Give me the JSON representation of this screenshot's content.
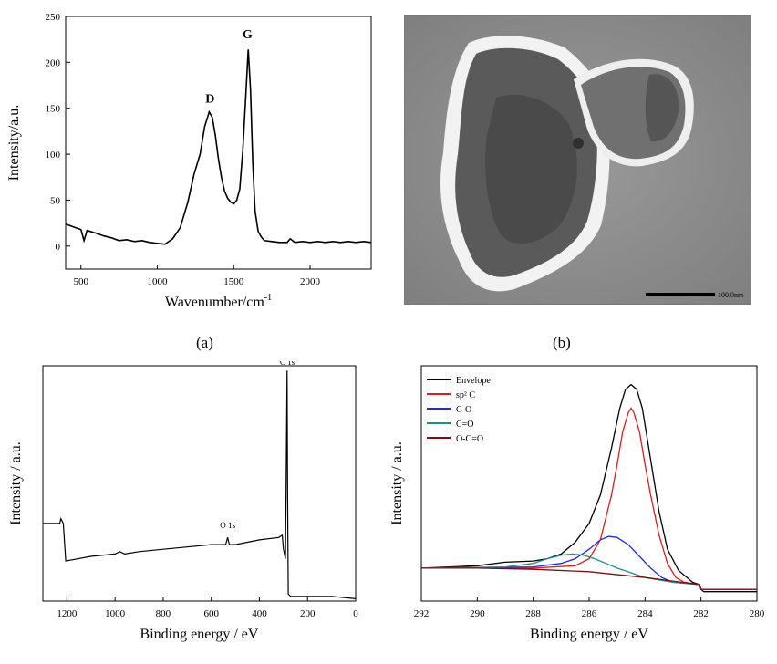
{
  "captions": {
    "a": "(a)",
    "b": "(b)"
  },
  "scale_bar_text": "100.0nm",
  "chart_data": [
    {
      "panel": "a",
      "type": "line",
      "xlabel": "Wavenumber/cm",
      "xlabel_sup": "-1",
      "ylabel": "Intensity/a.u.",
      "xlim": [
        400,
        2400
      ],
      "ylim": [
        -25,
        250
      ],
      "xticks": [
        500,
        1000,
        1500,
        2000
      ],
      "yticks": [
        0,
        50,
        100,
        150,
        200,
        250
      ],
      "annotations": [
        {
          "text": "D",
          "x": 1345,
          "y": 150
        },
        {
          "text": "G",
          "x": 1590,
          "y": 220
        }
      ],
      "series": [
        {
          "color": "#000000",
          "x": [
            400,
            450,
            500,
            520,
            540,
            560,
            600,
            650,
            700,
            750,
            800,
            850,
            900,
            950,
            1000,
            1050,
            1100,
            1150,
            1200,
            1240,
            1280,
            1310,
            1340,
            1360,
            1380,
            1400,
            1420,
            1440,
            1460,
            1480,
            1500,
            1520,
            1540,
            1560,
            1580,
            1595,
            1610,
            1625,
            1640,
            1660,
            1680,
            1700,
            1750,
            1800,
            1850,
            1870,
            1900,
            1950,
            2000,
            2050,
            2100,
            2150,
            2200,
            2250,
            2300,
            2350,
            2400
          ],
          "y": [
            24,
            21,
            18,
            6,
            17,
            16,
            14,
            11,
            9,
            6,
            7,
            5,
            6,
            4,
            3,
            2,
            8,
            20,
            48,
            78,
            100,
            130,
            146,
            140,
            120,
            95,
            75,
            60,
            52,
            48,
            46,
            50,
            62,
            105,
            165,
            214,
            170,
            90,
            38,
            16,
            10,
            6,
            5,
            4,
            4,
            8,
            4,
            5,
            4,
            5,
            4,
            5,
            4,
            5,
            4,
            5,
            4
          ]
        }
      ]
    },
    {
      "panel": "c",
      "type": "line",
      "xlabel": "Binding energy / eV",
      "ylabel": "Intensity / a.u.",
      "xlim": [
        1300,
        0
      ],
      "ylim": [
        0,
        100
      ],
      "xticks": [
        1200,
        1000,
        800,
        600,
        400,
        200,
        0
      ],
      "peak_labels": [
        {
          "text": "C 1s",
          "x": 284
        },
        {
          "text": "O 1s",
          "x": 532
        }
      ],
      "series": [
        {
          "color": "#000000",
          "x": [
            1300,
            1260,
            1240,
            1230,
            1225,
            1215,
            1205,
            1100,
            1000,
            980,
            960,
            900,
            800,
            700,
            600,
            540,
            532,
            525,
            500,
            400,
            320,
            305,
            300,
            292,
            288,
            285,
            283,
            280,
            270,
            200,
            100,
            0
          ],
          "y": [
            33,
            33,
            33,
            33,
            35,
            33,
            17,
            19,
            20,
            21,
            20,
            21,
            22,
            23,
            24,
            24,
            27,
            24,
            24,
            26,
            27,
            28,
            22,
            18,
            60,
            98,
            50,
            3,
            2,
            2,
            2,
            1
          ]
        }
      ]
    },
    {
      "panel": "d",
      "type": "line",
      "xlabel": "Binding energy / eV",
      "ylabel": "Intensity / a.u.",
      "xlim": [
        292,
        280
      ],
      "ylim": [
        0,
        1
      ],
      "xticks": [
        292,
        290,
        288,
        286,
        284,
        282,
        280
      ],
      "legend_position": "top-left",
      "series": [
        {
          "name": "Envelope",
          "color": "#000000",
          "x": [
            292,
            291,
            290,
            289,
            288,
            287.5,
            287,
            286.5,
            286,
            285.6,
            285.2,
            284.9,
            284.7,
            284.5,
            284.3,
            284.1,
            283.8,
            283.5,
            283.2,
            282.8,
            282.3,
            282.05,
            282,
            281.9,
            281,
            280
          ],
          "y": [
            0.14,
            0.145,
            0.15,
            0.165,
            0.17,
            0.18,
            0.2,
            0.25,
            0.33,
            0.45,
            0.65,
            0.82,
            0.9,
            0.92,
            0.9,
            0.82,
            0.6,
            0.38,
            0.22,
            0.13,
            0.08,
            0.07,
            0.05,
            0.04,
            0.04,
            0.04
          ]
        },
        {
          "name": "sp² C",
          "color": "#e11b1b",
          "x": [
            292,
            288,
            286.5,
            286,
            285.6,
            285.2,
            285,
            284.8,
            284.6,
            284.5,
            284.4,
            284.2,
            284,
            283.8,
            283.5,
            283.2,
            282.9,
            282.6,
            282.3,
            282.05,
            282,
            280
          ],
          "y": [
            0.14,
            0.14,
            0.15,
            0.18,
            0.26,
            0.45,
            0.58,
            0.72,
            0.8,
            0.82,
            0.8,
            0.72,
            0.58,
            0.45,
            0.28,
            0.16,
            0.1,
            0.08,
            0.075,
            0.07,
            0.05,
            0.05
          ]
        },
        {
          "name": "C-O",
          "color": "#1f2be0",
          "x": [
            292,
            288,
            287,
            286.5,
            286,
            285.6,
            285.3,
            285,
            284.6,
            284.2,
            283.8,
            283.4,
            283,
            282.5,
            282.05,
            282,
            280
          ],
          "y": [
            0.14,
            0.145,
            0.16,
            0.18,
            0.22,
            0.26,
            0.275,
            0.27,
            0.24,
            0.19,
            0.14,
            0.1,
            0.08,
            0.075,
            0.07,
            0.05,
            0.05
          ]
        },
        {
          "name": "C=O",
          "color": "#1d8f8a",
          "x": [
            292,
            289,
            288,
            287.5,
            287,
            286.6,
            286.2,
            285.8,
            285.4,
            285,
            284.5,
            284,
            283.5,
            283,
            282.05,
            282,
            280
          ],
          "y": [
            0.14,
            0.145,
            0.16,
            0.18,
            0.195,
            0.2,
            0.195,
            0.18,
            0.16,
            0.14,
            0.12,
            0.1,
            0.09,
            0.08,
            0.07,
            0.05,
            0.05
          ]
        },
        {
          "name": "O-C=O",
          "color": "#7a1010",
          "x": [
            292,
            290,
            288,
            286,
            284,
            282.05,
            282,
            280
          ],
          "y": [
            0.14,
            0.14,
            0.135,
            0.125,
            0.1,
            0.07,
            0.05,
            0.05
          ]
        }
      ]
    }
  ]
}
